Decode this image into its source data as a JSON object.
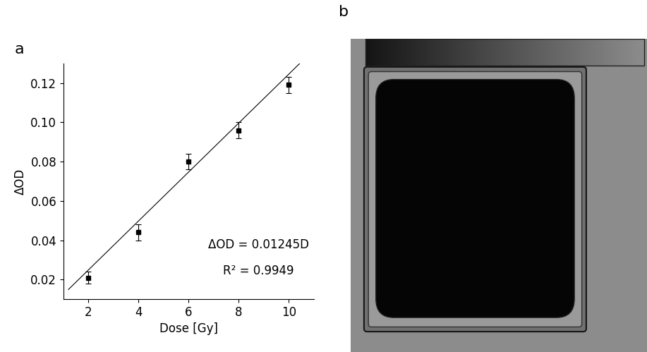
{
  "chart_data": {
    "type": "scatter",
    "x_label": "Dose [Gy]",
    "y_label": "ΔOD",
    "x": [
      2,
      4,
      6,
      8,
      10
    ],
    "values": [
      0.021,
      0.044,
      0.08,
      0.096,
      0.119
    ],
    "errors": [
      0.003,
      0.004,
      0.004,
      0.004,
      0.004
    ],
    "color": "#000000",
    "marker": "s",
    "fit": {
      "slope": 0.01245,
      "x": [
        1.2,
        10.6
      ]
    },
    "annotations": [
      "ΔOD = 0.01245D",
      "R² = 0.9949"
    ],
    "xlim": [
      1,
      11
    ],
    "xticks": [
      2,
      4,
      6,
      8,
      10
    ],
    "ylim": [
      0.01,
      0.13
    ],
    "yticks": [
      0.02,
      0.04,
      0.06,
      0.08,
      {
        "value": 0.1,
        "label": "0.10"
      },
      0.12
    ],
    "grid": false
  },
  "panel_labels": [
    "a",
    "b"
  ]
}
